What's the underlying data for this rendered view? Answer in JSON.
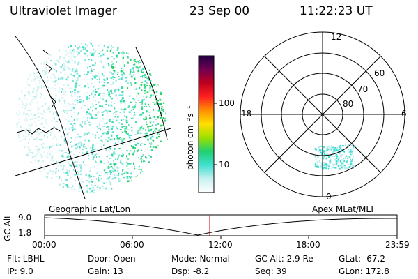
{
  "header": {
    "title": "Ultraviolet Imager",
    "date": "23 Sep 00",
    "time": "11:22:23 UT"
  },
  "colorbar": {
    "unit_label": "photon cm⁻²s⁻¹",
    "ticks": [
      "100",
      "10"
    ],
    "stops": [
      "#ffffff",
      "#c8f0f0",
      "#40e0d0",
      "#20d070",
      "#9be000",
      "#ffe000",
      "#ff9000",
      "#ff2020",
      "#c00020",
      "#700050",
      "#200040"
    ]
  },
  "polar": {
    "labels": {
      "top": "12",
      "bottom": "0",
      "left": "18",
      "right": "6"
    },
    "lat_labels": [
      "60",
      "70",
      "80"
    ]
  },
  "timeline": {
    "left_label": "Geographic Lat/Lon",
    "right_label": "Apex MLat/MLT",
    "axis_title": "GC Alt",
    "y_ticks": [
      "9.0",
      "1.8"
    ],
    "x_ticks": [
      "00:00",
      "06:00",
      "12:00",
      "18:00",
      "23:59"
    ],
    "marker_color": "#cc0000"
  },
  "status": {
    "flt": "Flt:  LBHL",
    "ip": "IP:  9.0",
    "door": "Door:  Open",
    "gain": "Gain:  13",
    "mode": "Mode:  Normal",
    "dsp": "Dsp:     -8.2",
    "gcalt": "GC Alt:  2.9 Re",
    "seq": "Seq:  39",
    "glat": "GLat:  -67.2",
    "glon": "GLon:  172.8"
  }
}
